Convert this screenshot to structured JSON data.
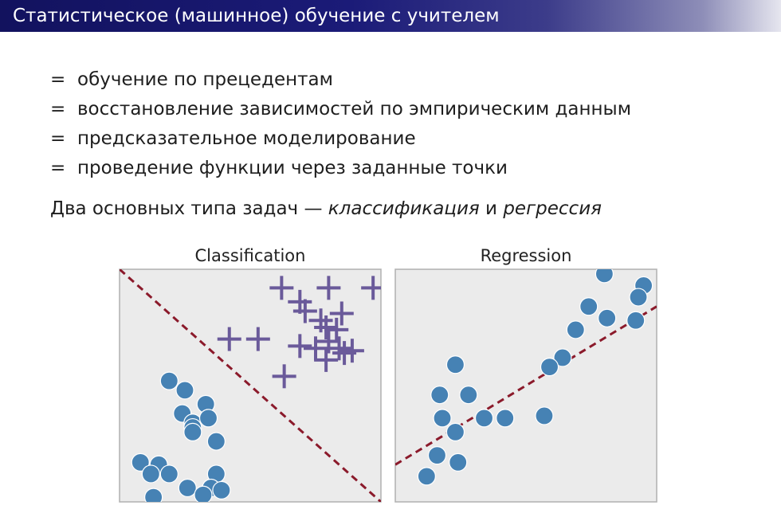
{
  "slide": {
    "title": "Статистическое (машинное) обучение с учителем",
    "bullets": [
      {
        "prefix": "=",
        "text": "обучение по прецедентам"
      },
      {
        "prefix": "=",
        "text": "восстановление зависимостей по эмпирическим данным"
      },
      {
        "prefix": "=",
        "text": "предсказательное моделирование"
      },
      {
        "prefix": "=",
        "text": "проведение функции через заданные точки"
      }
    ],
    "summary": {
      "lead": "Два основных типа задач —",
      "term1": "классификация",
      "conj": "и",
      "term2": "регрессия"
    }
  },
  "colors": {
    "title_bar": "#1b1b78",
    "circle": "#4682b4",
    "cross": "#6a5a9a",
    "dashed_line": "#8b1a2b",
    "panel_bg": "#ebebeb"
  },
  "figures": {
    "classification": {
      "title": "Classification",
      "circles": [
        [
          0.19,
          0.52
        ],
        [
          0.25,
          0.48
        ],
        [
          0.33,
          0.42
        ],
        [
          0.24,
          0.38
        ],
        [
          0.28,
          0.34
        ],
        [
          0.28,
          0.32
        ],
        [
          0.28,
          0.3
        ],
        [
          0.34,
          0.36
        ],
        [
          0.37,
          0.26
        ],
        [
          0.08,
          0.17
        ],
        [
          0.15,
          0.16
        ],
        [
          0.19,
          0.12
        ],
        [
          0.12,
          0.12
        ],
        [
          0.37,
          0.12
        ],
        [
          0.26,
          0.06
        ],
        [
          0.35,
          0.06
        ],
        [
          0.39,
          0.05
        ],
        [
          0.13,
          0.02
        ],
        [
          0.32,
          0.03
        ]
      ],
      "crosses": [
        [
          0.62,
          0.92
        ],
        [
          0.69,
          0.86
        ],
        [
          0.8,
          0.92
        ],
        [
          0.97,
          0.92
        ],
        [
          0.71,
          0.82
        ],
        [
          0.77,
          0.78
        ],
        [
          0.85,
          0.81
        ],
        [
          0.79,
          0.75
        ],
        [
          0.83,
          0.74
        ],
        [
          0.42,
          0.7
        ],
        [
          0.53,
          0.7
        ],
        [
          0.69,
          0.67
        ],
        [
          0.75,
          0.66
        ],
        [
          0.8,
          0.69
        ],
        [
          0.84,
          0.66
        ],
        [
          0.86,
          0.64
        ],
        [
          0.89,
          0.65
        ],
        [
          0.79,
          0.61
        ],
        [
          0.63,
          0.54
        ]
      ],
      "boundary": [
        [
          0.0,
          1.0
        ],
        [
          1.0,
          0.0
        ]
      ]
    },
    "regression": {
      "title": "Regression",
      "points": [
        [
          0.8,
          0.98
        ],
        [
          0.95,
          0.93
        ],
        [
          0.93,
          0.88
        ],
        [
          0.74,
          0.84
        ],
        [
          0.81,
          0.79
        ],
        [
          0.69,
          0.74
        ],
        [
          0.92,
          0.78
        ],
        [
          0.64,
          0.62
        ],
        [
          0.59,
          0.58
        ],
        [
          0.23,
          0.59
        ],
        [
          0.17,
          0.46
        ],
        [
          0.28,
          0.46
        ],
        [
          0.18,
          0.36
        ],
        [
          0.34,
          0.36
        ],
        [
          0.42,
          0.36
        ],
        [
          0.57,
          0.37
        ],
        [
          0.23,
          0.3
        ],
        [
          0.16,
          0.2
        ],
        [
          0.24,
          0.17
        ],
        [
          0.12,
          0.11
        ]
      ],
      "fit": [
        [
          0.0,
          0.16
        ],
        [
          1.0,
          0.84
        ]
      ]
    }
  }
}
